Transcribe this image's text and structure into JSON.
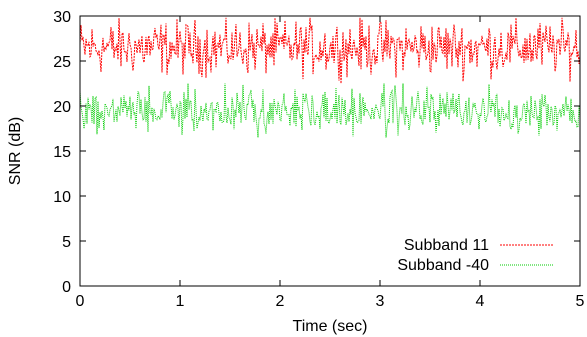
{
  "chart_data": {
    "type": "line",
    "title": "",
    "xlabel": "Time (sec)",
    "ylabel": "SNR (dB)",
    "xlim": [
      0,
      5
    ],
    "ylim": [
      0,
      30
    ],
    "xticks": [
      0,
      1,
      2,
      3,
      4,
      5
    ],
    "yticks": [
      0,
      5,
      10,
      15,
      20,
      25,
      30
    ],
    "grid": false,
    "legend_position": "bottom-right",
    "sample_step_sec": 0.01,
    "series": [
      {
        "name": "Subband 11",
        "color": "#ff0000",
        "line_style": "dashed",
        "mean": 26.5,
        "min": 22.5,
        "max": 29.8
      },
      {
        "name": "Subband -40",
        "color": "#00cc00",
        "line_style": "dotted",
        "mean": 19.5,
        "min": 16.5,
        "max": 22.5
      }
    ]
  }
}
